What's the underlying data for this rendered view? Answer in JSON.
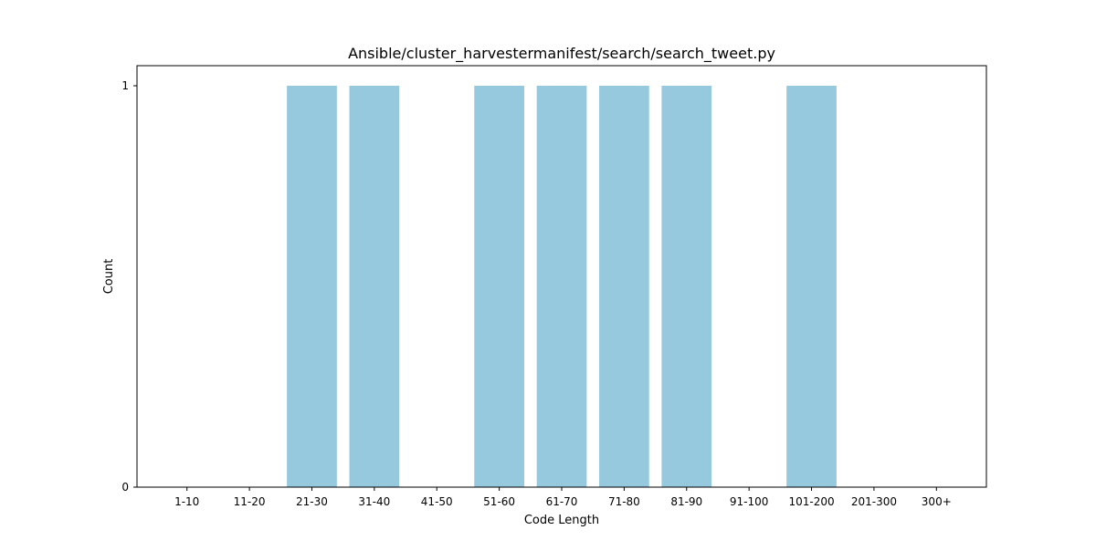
{
  "chart_data": {
    "type": "bar",
    "title": "Ansible/cluster_harvestermanifest/search/search_tweet.py",
    "xlabel": "Code Length",
    "ylabel": "Count",
    "categories": [
      "1-10",
      "11-20",
      "21-30",
      "31-40",
      "41-50",
      "51-60",
      "61-70",
      "71-80",
      "81-90",
      "91-100",
      "101-200",
      "201-300",
      "300+"
    ],
    "values": [
      0,
      0,
      1,
      1,
      0,
      1,
      1,
      1,
      1,
      0,
      1,
      0,
      0
    ],
    "ylim": [
      0,
      1.05
    ],
    "yticks": [
      0,
      1
    ],
    "grid": false,
    "legend": "none",
    "bar_color": "#96c9de"
  }
}
